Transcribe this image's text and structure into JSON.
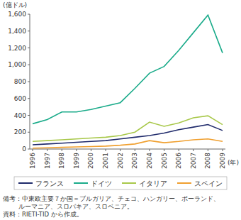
{
  "chart_data": {
    "type": "line",
    "ylabel": "(億ドル)",
    "xlabel": "(年)",
    "categories": [
      "1996",
      "1997",
      "1998",
      "1999",
      "2000",
      "2001",
      "2002",
      "2003",
      "2004",
      "2005",
      "2006",
      "2007",
      "2008",
      "2009"
    ],
    "series": [
      {
        "name": "フランス",
        "color": "#1f2a6b",
        "values": [
          50,
          60,
          70,
          80,
          90,
          100,
          120,
          140,
          160,
          190,
          230,
          260,
          290,
          220
        ]
      },
      {
        "name": "ドイツ",
        "color": "#1aab8a",
        "values": [
          300,
          350,
          440,
          440,
          470,
          510,
          550,
          720,
          900,
          980,
          1170,
          1380,
          1590,
          1140
        ]
      },
      {
        "name": "イタリア",
        "color": "#a8c84a",
        "values": [
          90,
          100,
          110,
          120,
          130,
          140,
          160,
          200,
          320,
          270,
          310,
          370,
          395,
          290
        ]
      },
      {
        "name": "スペイン",
        "color": "#f0a030",
        "values": [
          10,
          15,
          20,
          25,
          30,
          35,
          45,
          60,
          100,
          75,
          90,
          110,
          120,
          90
        ]
      }
    ],
    "ylim": [
      0,
      1600
    ],
    "yticks": [
      0,
      200,
      400,
      600,
      800,
      {
        "value": 1000,
        "label": "1,000"
      },
      {
        "value": 1200,
        "label": "1,200"
      },
      {
        "value": 1400,
        "label": "1,400"
      },
      {
        "value": 1600,
        "label": "1,600"
      }
    ],
    "grid": false,
    "legend": "bottom",
    "notes": [
      "備考：中東欧主要７か国＝ブルガリア、チェコ、ハンガリー、ポーランド、",
      "ルーマニア、スロバキア、スロベニア。",
      "資料：RIETI-TID から作成。"
    ]
  }
}
